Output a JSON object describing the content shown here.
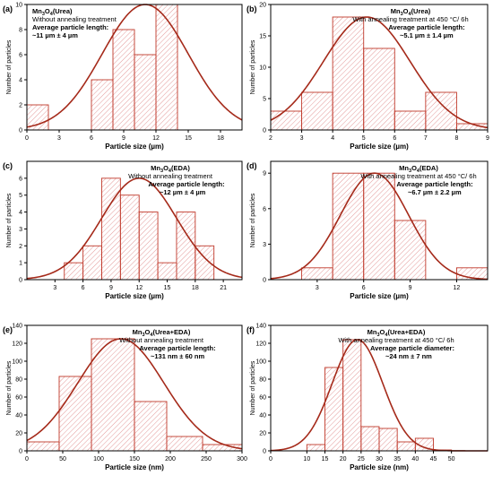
{
  "colors": {
    "bar_stroke": "#c0392b",
    "hatch": "#e8a0a0",
    "curve": "#a52a1a",
    "axis": "#000000"
  },
  "chart_data": [
    {
      "type": "bar",
      "panel_label": "(a)",
      "annotation": {
        "material_main": "Mn",
        "material_sub": "3",
        "material_main2": "O",
        "material_sub2": "4",
        "material_rest": "(Urea)",
        "treatment": "Without annealing treatment",
        "avg_label": "Average particle length:",
        "avg_value": "~11  µm ± 4 µm"
      },
      "xlabel": "Particle size (µm)",
      "ylabel": "Number of particles",
      "xlim": [
        0,
        20
      ],
      "ylim": [
        0,
        10
      ],
      "xticks": [
        "0",
        "3",
        "6",
        "9",
        "12",
        "15",
        "18"
      ],
      "yticks": [
        "0",
        "2",
        "4",
        "6",
        "8",
        "10"
      ],
      "bins": [
        [
          0,
          2,
          2
        ],
        [
          2,
          4,
          0
        ],
        [
          4,
          6,
          0
        ],
        [
          6,
          8,
          4
        ],
        [
          8,
          10,
          8
        ],
        [
          10,
          12,
          6
        ],
        [
          12,
          14,
          10
        ],
        [
          14,
          16,
          0
        ],
        [
          16,
          18,
          0
        ]
      ],
      "fit": {
        "mean": 11,
        "sd": 4,
        "peak": 10
      }
    },
    {
      "type": "bar",
      "panel_label": "(b)",
      "annotation": {
        "material_main": "Mn",
        "material_sub": "3",
        "material_main2": "O",
        "material_sub2": "4",
        "material_rest": "(Urea)",
        "treatment": "With annealing treatment at 450 °C/ 6h",
        "avg_label": "Average particle length:",
        "avg_value": "~5.1  µm ± 1.4 µm"
      },
      "xlabel": "Particle size (µm)",
      "ylabel": "Number of particles",
      "xlim": [
        2,
        9
      ],
      "ylim": [
        0,
        20
      ],
      "xticks": [
        "2",
        "3",
        "4",
        "5",
        "6",
        "7",
        "8",
        "9"
      ],
      "yticks": [
        "0",
        "5",
        "10",
        "15",
        "20"
      ],
      "bins": [
        [
          2,
          3,
          3
        ],
        [
          3,
          4,
          6
        ],
        [
          4,
          5,
          18
        ],
        [
          5,
          6,
          13
        ],
        [
          6,
          7,
          3
        ],
        [
          7,
          8,
          6
        ],
        [
          8,
          9,
          1
        ]
      ],
      "fit": {
        "mean": 5.1,
        "sd": 1.4,
        "peak": 18
      }
    },
    {
      "type": "bar",
      "panel_label": "(c)",
      "annotation": {
        "material_main": "Mn",
        "material_sub": "3",
        "material_main2": "O",
        "material_sub2": "4",
        "material_rest": "(EDA)",
        "treatment": "Without annealing treatment",
        "avg_label": "Average particle length:",
        "avg_value": "~12 µm ± 4 µm"
      },
      "xlabel": "Particle size (µm)",
      "ylabel": "Number of particles",
      "xlim": [
        0,
        23
      ],
      "ylim": [
        0,
        7
      ],
      "xticks": [
        "3",
        "6",
        "9",
        "12",
        "15",
        "18",
        "21"
      ],
      "yticks": [
        "0",
        "1",
        "2",
        "3",
        "4",
        "5",
        "6"
      ],
      "bins": [
        [
          4,
          6,
          1
        ],
        [
          6,
          8,
          2
        ],
        [
          8,
          10,
          6
        ],
        [
          10,
          12,
          5
        ],
        [
          12,
          14,
          4
        ],
        [
          14,
          16,
          1
        ],
        [
          16,
          18,
          4
        ],
        [
          18,
          20,
          2
        ]
      ],
      "fit": {
        "mean": 12,
        "sd": 4,
        "peak": 6
      }
    },
    {
      "type": "bar",
      "panel_label": "(d)",
      "annotation": {
        "material_main": "Mn",
        "material_sub": "3",
        "material_main2": "O",
        "material_sub2": "4",
        "material_rest": "(EDA)",
        "treatment": "With annealing treatment at 450 °C/ 6h",
        "avg_label": "Average particle length:",
        "avg_value": "~6.7  µm ± 2.2 µm"
      },
      "xlabel": "Particle size (µm)",
      "ylabel": "Number of particles",
      "xlim": [
        0,
        14
      ],
      "ylim": [
        0,
        10
      ],
      "xticks": [
        "3",
        "6",
        "9",
        "12"
      ],
      "yticks": [
        "0",
        "3",
        "6",
        "9"
      ],
      "bins": [
        [
          2,
          4,
          1
        ],
        [
          4,
          6,
          9
        ],
        [
          6,
          8,
          9
        ],
        [
          8,
          10,
          5
        ],
        [
          10,
          12,
          0
        ],
        [
          12,
          14,
          1
        ]
      ],
      "fit": {
        "mean": 6.7,
        "sd": 2.2,
        "peak": 9
      }
    },
    {
      "type": "bar",
      "panel_label": "(e)",
      "annotation": {
        "material_main": "Mn",
        "material_sub": "3",
        "material_main2": "O",
        "material_sub2": "4",
        "material_rest": "(Urea+EDA)",
        "treatment": "Without annealing treatment",
        "avg_label": "Average particle length:",
        "avg_value": "~131 nm ± 60 nm"
      },
      "xlabel": "Particle size (nm)",
      "ylabel": "Number of particles",
      "xlim": [
        0,
        300
      ],
      "ylim": [
        0,
        140
      ],
      "xticks": [
        "0",
        "50",
        "100",
        "150",
        "200",
        "250",
        "300"
      ],
      "yticks": [
        "0",
        "20",
        "40",
        "60",
        "80",
        "100",
        "120",
        "140"
      ],
      "bins": [
        [
          0,
          45,
          10
        ],
        [
          45,
          90,
          83
        ],
        [
          90,
          150,
          125
        ],
        [
          150,
          195,
          55
        ],
        [
          195,
          245,
          16
        ],
        [
          245,
          300,
          7
        ]
      ],
      "fit": {
        "mean": 131,
        "sd": 60,
        "peak": 125
      }
    },
    {
      "type": "bar",
      "panel_label": "(f)",
      "annotation": {
        "material_main": "Mn",
        "material_sub": "3",
        "material_main2": "O",
        "material_sub2": "4",
        "material_rest": "(Urea+EDA)",
        "treatment": "With annealing treatment at 450 °C/ 6h",
        "avg_label": "Average particle diameter:",
        "avg_value": "~24 nm ± 7 nm"
      },
      "xlabel": "Particle size (nm)",
      "ylabel": "Number of particles",
      "xlim": [
        0,
        60
      ],
      "ylim": [
        0,
        140
      ],
      "xticks": [
        "0",
        "10",
        "15",
        "20",
        "25",
        "30",
        "35",
        "40",
        "45",
        "50"
      ],
      "yticks": [
        "0",
        "20",
        "40",
        "60",
        "80",
        "100",
        "120",
        "140"
      ],
      "xtick_values": [
        0,
        10,
        15,
        20,
        25,
        30,
        35,
        40,
        45,
        50
      ],
      "bins": [
        [
          10,
          15,
          7
        ],
        [
          15,
          20,
          93
        ],
        [
          20,
          25,
          124
        ],
        [
          25,
          30,
          27
        ],
        [
          30,
          35,
          25
        ],
        [
          35,
          40,
          10
        ],
        [
          40,
          45,
          14
        ],
        [
          45,
          50,
          1
        ]
      ],
      "fit": {
        "mean": 24,
        "sd": 7,
        "peak": 124
      }
    }
  ]
}
